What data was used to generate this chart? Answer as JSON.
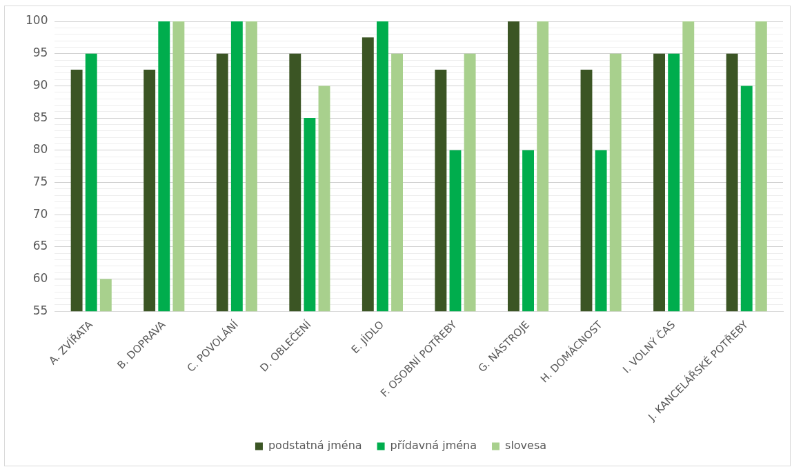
{
  "chart_data": {
    "type": "bar",
    "categories": [
      "A. ZVÍŘATA",
      "B. DOPRAVA",
      "C. POVOLÁNÍ",
      "D. OBLEČENÍ",
      "E. JÍDLO",
      "F. OSOBNÍ POTŘEBY",
      "G. NÁSTROJE",
      "H. DOMÁCNOST",
      "I. VOLNÝ ČAS",
      "J. KANCELÁŘSKÉ POTŘEBY"
    ],
    "series": [
      {
        "name": "podstatná jména",
        "color": "#3b5524",
        "values": [
          92.5,
          92.5,
          95,
          95,
          97.5,
          92.5,
          100,
          92.5,
          95,
          95
        ]
      },
      {
        "name": "přídavná jména",
        "color": "#00ad4d",
        "values": [
          95,
          100,
          100,
          85,
          100,
          80,
          80,
          80,
          95,
          90
        ]
      },
      {
        "name": "slovesa",
        "color": "#a8d08d",
        "values": [
          60,
          100,
          100,
          90,
          95,
          95,
          100,
          95,
          100,
          100
        ]
      }
    ],
    "ylim": [
      55,
      100
    ],
    "yticks": [
      55,
      {
        "value": 56,
        "label": null
      },
      {
        "value": 57,
        "label": null
      },
      {
        "value": 58,
        "label": null
      },
      {
        "value": 59,
        "label": null
      },
      60,
      {
        "value": 61,
        "label": null
      },
      {
        "value": 62,
        "label": null
      },
      {
        "value": 63,
        "label": null
      },
      {
        "value": 64,
        "label": null
      },
      65,
      {
        "value": 66,
        "label": null
      },
      {
        "value": 67,
        "label": null
      },
      {
        "value": 68,
        "label": null
      },
      {
        "value": 69,
        "label": null
      },
      70,
      {
        "value": 71,
        "label": null
      },
      {
        "value": 72,
        "label": null
      },
      {
        "value": 73,
        "label": null
      },
      {
        "value": 74,
        "label": null
      },
      75,
      {
        "value": 76,
        "label": null
      },
      {
        "value": 77,
        "label": null
      },
      {
        "value": 78,
        "label": null
      },
      {
        "value": 79,
        "label": null
      },
      80,
      {
        "value": 81,
        "label": null
      },
      {
        "value": 82,
        "label": null
      },
      {
        "value": 83,
        "label": null
      },
      {
        "value": 84,
        "label": null
      },
      85,
      {
        "value": 86,
        "label": null
      },
      {
        "value": 87,
        "label": null
      },
      {
        "value": 88,
        "label": null
      },
      {
        "value": 89,
        "label": null
      },
      90,
      {
        "value": 91,
        "label": null
      },
      {
        "value": 92,
        "label": null
      },
      {
        "value": 93,
        "label": null
      },
      {
        "value": 94,
        "label": null
      },
      95,
      {
        "value": 96,
        "label": null
      },
      {
        "value": 97,
        "label": null
      },
      {
        "value": 98,
        "label": null
      },
      {
        "value": 99,
        "label": null
      },
      100
    ],
    "grid": "y",
    "legend": "bottom"
  }
}
